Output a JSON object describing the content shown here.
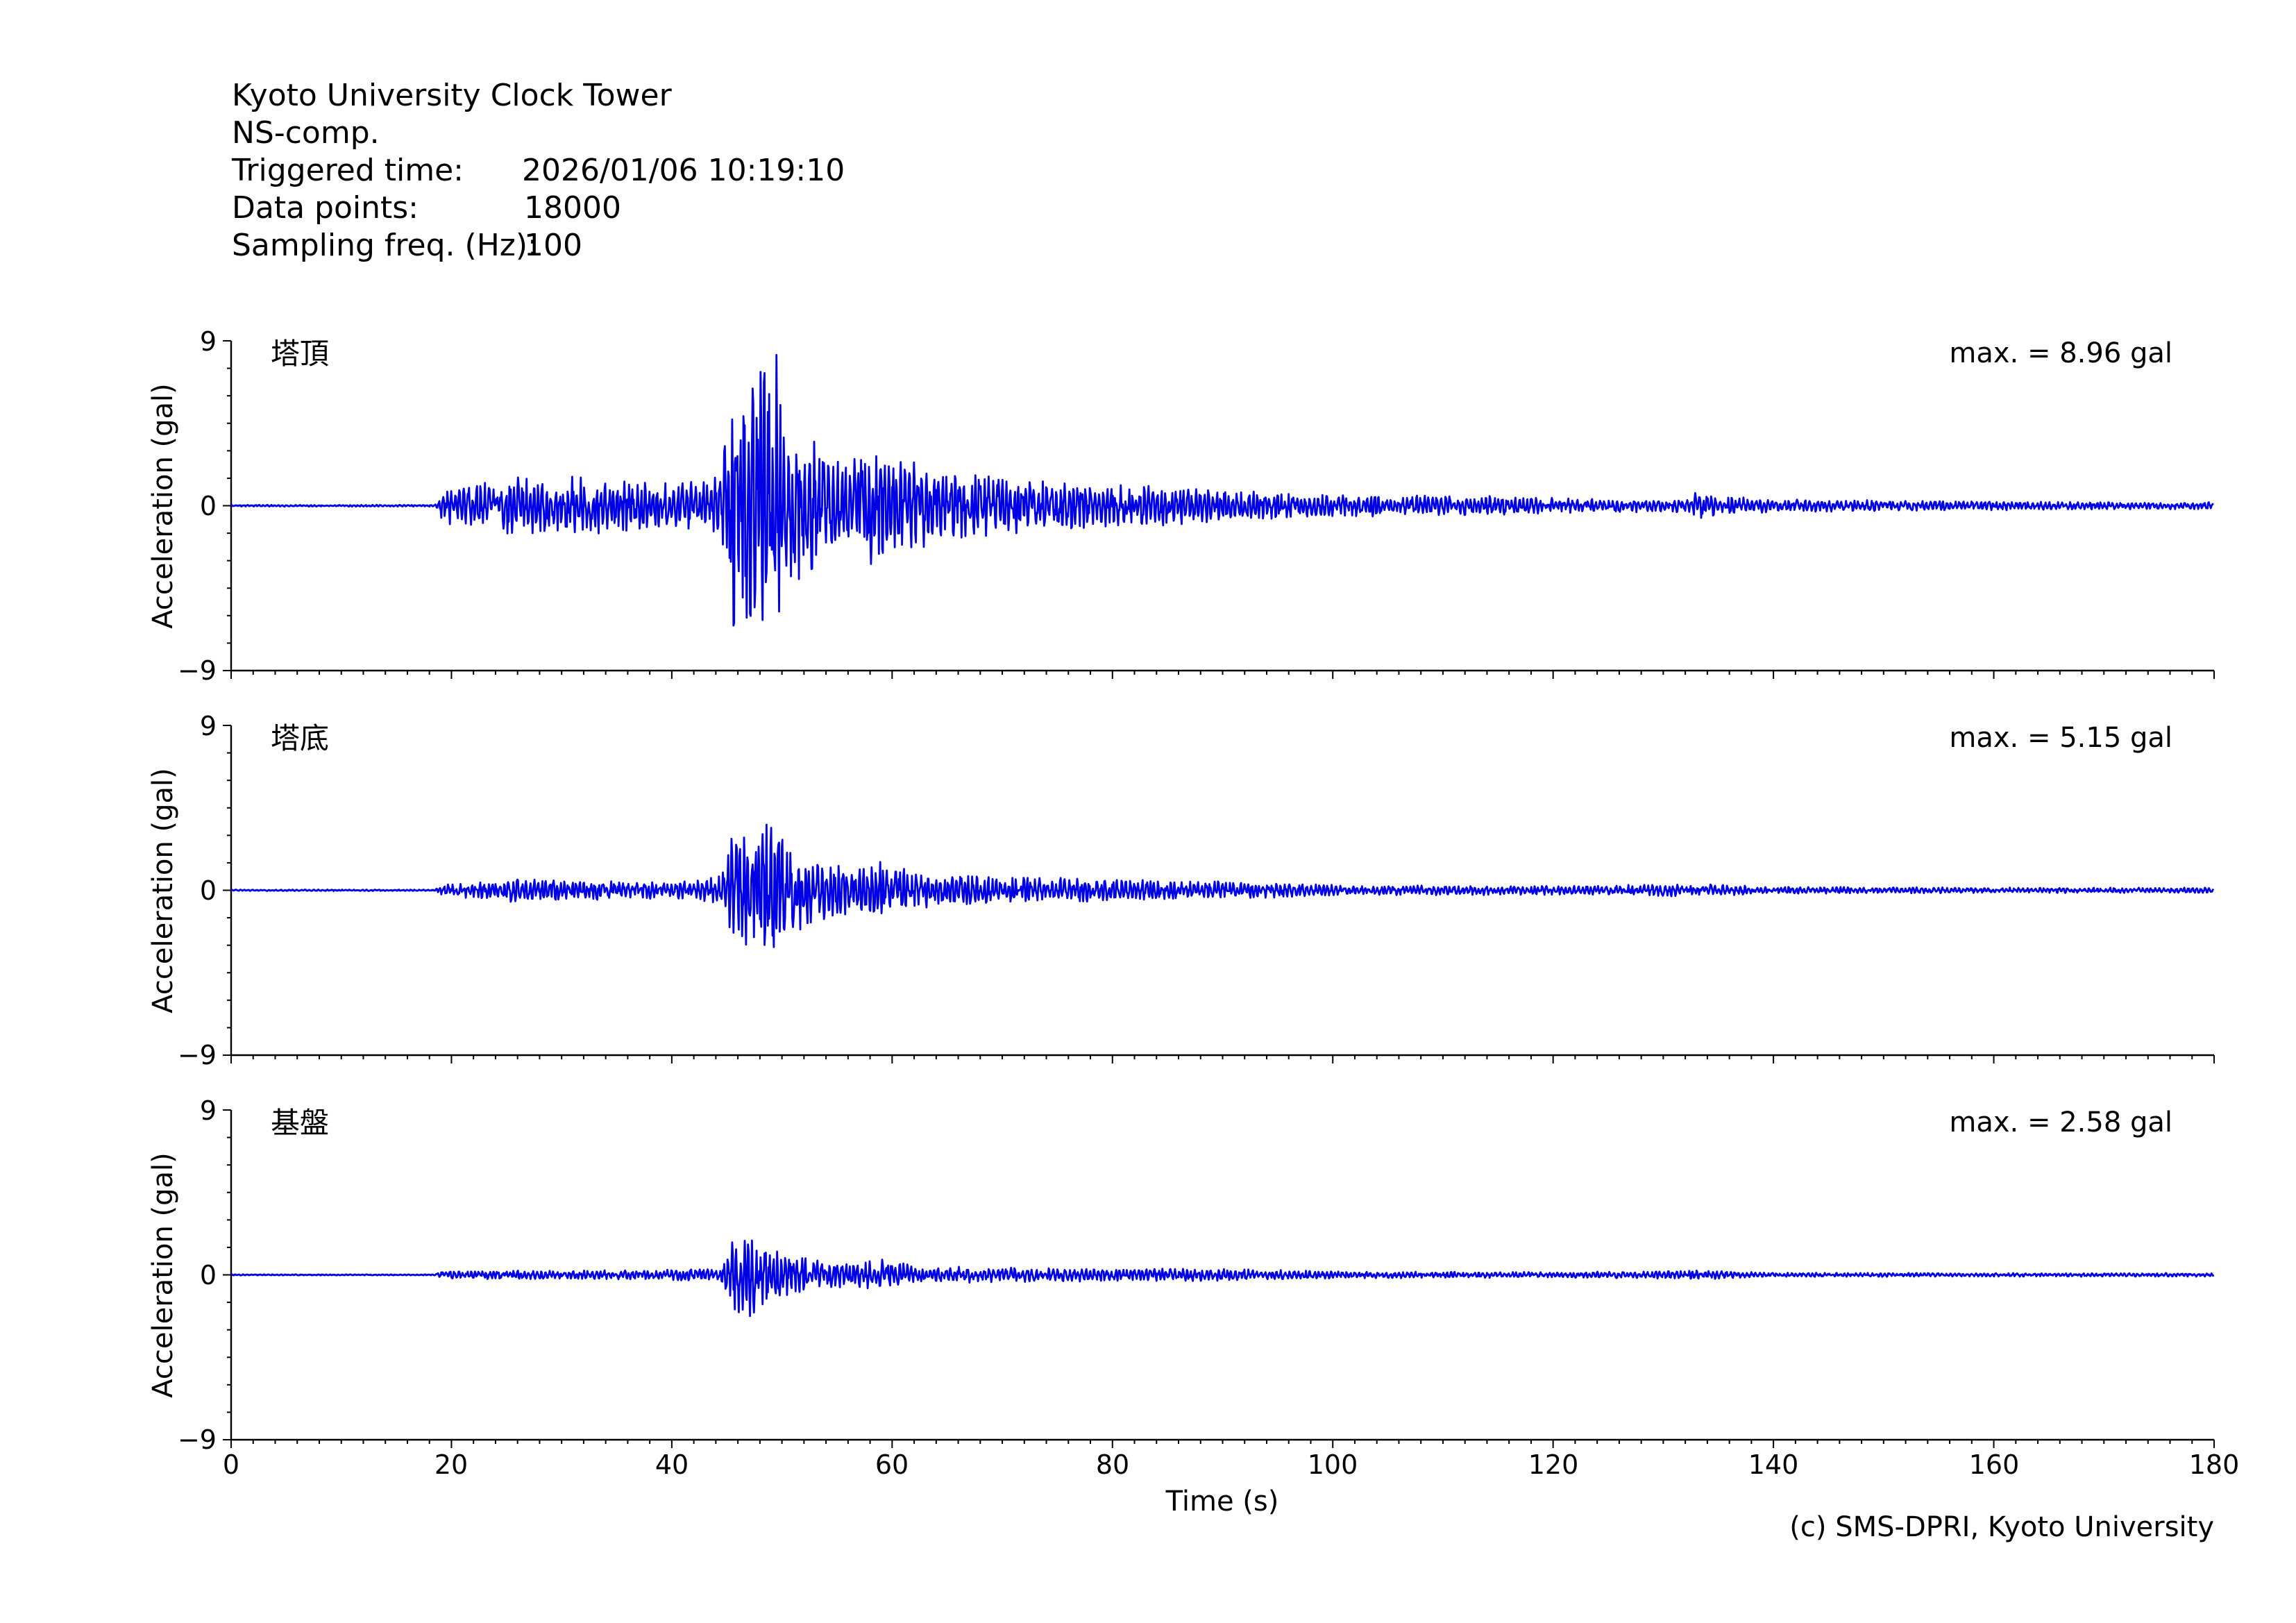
{
  "header": {
    "site": "Kyoto University Clock Tower",
    "component": "NS-comp.",
    "triggered_label": "Triggered time:",
    "triggered_value": "2026/01/06 10:19:10",
    "points_label": "Data points:",
    "points_value": "18000",
    "freq_label": "Sampling freq. (Hz):",
    "freq_value": "100"
  },
  "footer": {
    "credit": "(c) SMS-DPRI, Kyoto University"
  },
  "colors": {
    "trace": "#0000e6",
    "axis": "#000000"
  },
  "chart_data": [
    {
      "type": "line",
      "title": "塔頂",
      "annotation": "max. = 8.96 gal",
      "ylabel": "Acceleration (gal)",
      "xlabel": "",
      "xlim": [
        0,
        180
      ],
      "ylim": [
        -9,
        9
      ],
      "y_ticks": [
        9,
        0,
        -9
      ],
      "y_tick_labels": [
        "9",
        "0",
        "−9"
      ],
      "x_ticks": [
        0,
        20,
        40,
        60,
        80,
        100,
        120,
        140,
        160,
        180
      ],
      "x_tick_labels": [],
      "grid": false,
      "series": [
        {
          "values_envelope": [
            [
              0,
              0.05
            ],
            [
              18.5,
              0.05
            ],
            [
              19,
              0.7
            ],
            [
              20,
              1.1
            ],
            [
              22,
              1.2
            ],
            [
              24,
              1.3
            ],
            [
              25.5,
              1.9
            ],
            [
              27,
              1.5
            ],
            [
              30,
              1.6
            ],
            [
              33,
              1.6
            ],
            [
              36,
              1.4
            ],
            [
              39,
              1.5
            ],
            [
              42,
              1.3
            ],
            [
              44.5,
              1.7
            ],
            [
              45.3,
              6.5
            ],
            [
              46,
              8.96
            ],
            [
              47,
              7.0
            ],
            [
              48,
              8.0
            ],
            [
              49,
              8.5
            ],
            [
              49.5,
              8.96
            ],
            [
              50.5,
              5.0
            ],
            [
              52,
              4.0
            ],
            [
              54,
              3.0
            ],
            [
              56,
              2.6
            ],
            [
              58,
              3.5
            ],
            [
              59.5,
              2.8
            ],
            [
              62,
              2.5
            ],
            [
              65,
              2.0
            ],
            [
              70,
              1.7
            ],
            [
              75,
              1.5
            ],
            [
              80,
              1.2
            ],
            [
              85,
              1.1
            ],
            [
              90,
              0.9
            ],
            [
              95,
              0.7
            ],
            [
              100,
              0.6
            ],
            [
              110,
              0.6
            ],
            [
              120,
              0.45
            ],
            [
              130,
              0.35
            ],
            [
              132.5,
              0.4
            ],
            [
              133.3,
              1.2
            ],
            [
              134.2,
              0.6
            ],
            [
              140,
              0.35
            ],
            [
              150,
              0.3
            ],
            [
              160,
              0.25
            ],
            [
              170,
              0.2
            ],
            [
              180,
              0.2
            ]
          ]
        }
      ]
    },
    {
      "type": "line",
      "title": "塔底",
      "annotation": "max. = 5.15 gal",
      "ylabel": "Acceleration (gal)",
      "xlabel": "",
      "xlim": [
        0,
        180
      ],
      "ylim": [
        -9,
        9
      ],
      "y_ticks": [
        9,
        0,
        -9
      ],
      "y_tick_labels": [
        "9",
        "0",
        "−9"
      ],
      "x_ticks": [
        0,
        20,
        40,
        60,
        80,
        100,
        120,
        140,
        160,
        180
      ],
      "x_tick_labels": [],
      "grid": false,
      "series": [
        {
          "values_envelope": [
            [
              0,
              0.04
            ],
            [
              18.5,
              0.04
            ],
            [
              19,
              0.3
            ],
            [
              22,
              0.45
            ],
            [
              25.5,
              0.7
            ],
            [
              28,
              0.6
            ],
            [
              32,
              0.6
            ],
            [
              36,
              0.5
            ],
            [
              40,
              0.45
            ],
            [
              44.5,
              0.8
            ],
            [
              45.5,
              3.2
            ],
            [
              47,
              3.0
            ],
            [
              48,
              3.8
            ],
            [
              49.3,
              5.15
            ],
            [
              50.5,
              2.5
            ],
            [
              53,
              1.8
            ],
            [
              56,
              1.4
            ],
            [
              59.5,
              1.6
            ],
            [
              62,
              1.0
            ],
            [
              70,
              0.8
            ],
            [
              80,
              0.6
            ],
            [
              90,
              0.5
            ],
            [
              100,
              0.3
            ],
            [
              120,
              0.25
            ],
            [
              133.3,
              0.35
            ],
            [
              140,
              0.2
            ],
            [
              160,
              0.15
            ],
            [
              180,
              0.15
            ]
          ]
        }
      ]
    },
    {
      "type": "line",
      "title": "基盤",
      "annotation": "max. = 2.58 gal",
      "ylabel": "Acceleration (gal)",
      "xlabel": "Time (s)",
      "xlim": [
        0,
        180
      ],
      "ylim": [
        -9,
        9
      ],
      "y_ticks": [
        9,
        0,
        -9
      ],
      "y_tick_labels": [
        "9",
        "0",
        "−9"
      ],
      "x_ticks": [
        0,
        20,
        40,
        60,
        80,
        100,
        120,
        140,
        160,
        180
      ],
      "x_tick_labels": [
        "0",
        "20",
        "40",
        "60",
        "80",
        "100",
        "120",
        "140",
        "160",
        "180"
      ],
      "grid": false,
      "series": [
        {
          "values_envelope": [
            [
              0,
              0.03
            ],
            [
              18.5,
              0.03
            ],
            [
              19,
              0.2
            ],
            [
              25,
              0.25
            ],
            [
              35,
              0.25
            ],
            [
              44.5,
              0.35
            ],
            [
              45.5,
              2.0
            ],
            [
              47,
              2.58
            ],
            [
              48.5,
              2.2
            ],
            [
              50,
              1.2
            ],
            [
              53,
              0.8
            ],
            [
              56,
              0.7
            ],
            [
              59.5,
              0.9
            ],
            [
              62,
              0.5
            ],
            [
              70,
              0.4
            ],
            [
              80,
              0.35
            ],
            [
              90,
              0.35
            ],
            [
              100,
              0.2
            ],
            [
              120,
              0.15
            ],
            [
              133.3,
              0.25
            ],
            [
              140,
              0.12
            ],
            [
              160,
              0.1
            ],
            [
              180,
              0.1
            ]
          ]
        }
      ]
    }
  ]
}
